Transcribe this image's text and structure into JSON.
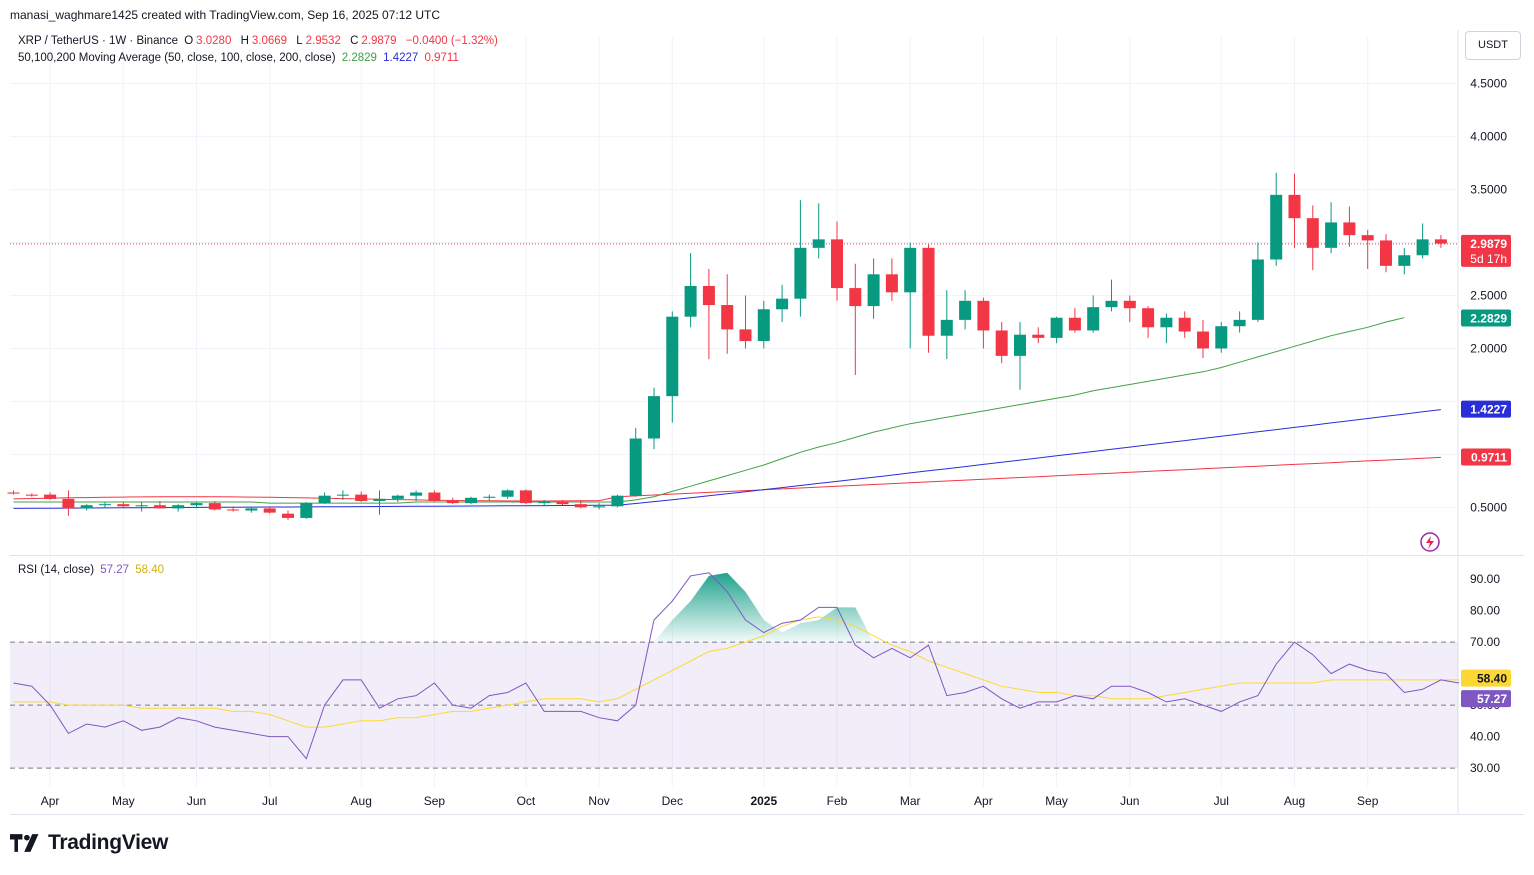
{
  "header": {
    "attribution": "manasi_waghmare1425 created with TradingView.com, Sep 16, 2025 07:12 UTC",
    "symbol": "XRP / TetherUS · 1W · Binance",
    "o_label": "O",
    "o_value": "3.0280",
    "h_label": "H",
    "h_value": "3.0669",
    "l_label": "L",
    "l_value": "2.9532",
    "c_label": "C",
    "c_value": "2.9879",
    "change": "−0.0400 (−1.32%)",
    "ma_title": "50,100,200 Moving Average (50, close, 100, close, 200, close)",
    "ma50_value": "2.2829",
    "ma100_value": "1.4227",
    "ma200_value": "0.9711",
    "rsi_title": "RSI (14, close)",
    "rsi_value": "57.27",
    "rsi_ma_value": "58.40",
    "currency_button": "USDT"
  },
  "price_scale_labels": {
    "last_price": "2.9879",
    "countdown": "5d 17h",
    "ma50": "2.2829",
    "ma100": "1.4227",
    "ma200": "0.9711",
    "rsi": "57.27",
    "rsi_ma": "58.40"
  },
  "brand": "TradingView",
  "colors": {
    "up": "#089981",
    "down": "#f23645",
    "ma50": "#43a047",
    "ma100": "#2a2ed6",
    "ma200": "#f23645",
    "rsi": "#7e57c2",
    "rsi_ma": "#fdd835"
  },
  "chart_data": [
    {
      "type": "candlestick",
      "title": "XRP / TetherUS · 1W · Binance",
      "y_ticks": [
        0.5,
        1.0,
        1.5,
        2.0,
        2.5,
        3.0,
        3.5,
        4.0,
        4.5
      ],
      "y_tick_labels": [
        "0.5000",
        "",
        "",
        "2.0000",
        "2.5000",
        "",
        "3.5000",
        "4.0000",
        "4.5000"
      ],
      "ylim": [
        0.05,
        4.95
      ],
      "x_labels": [
        {
          "label": "Apr",
          "bar": 2
        },
        {
          "label": "May",
          "bar": 6
        },
        {
          "label": "Jun",
          "bar": 10
        },
        {
          "label": "Jul",
          "bar": 14
        },
        {
          "label": "Aug",
          "bar": 19
        },
        {
          "label": "Sep",
          "bar": 23
        },
        {
          "label": "Oct",
          "bar": 28
        },
        {
          "label": "Nov",
          "bar": 32
        },
        {
          "label": "Dec",
          "bar": 36
        },
        {
          "label": "2025",
          "bar": 41
        },
        {
          "label": "Feb",
          "bar": 45
        },
        {
          "label": "Mar",
          "bar": 49
        },
        {
          "label": "Apr",
          "bar": 53
        },
        {
          "label": "May",
          "bar": 57
        },
        {
          "label": "Jun",
          "bar": 61
        },
        {
          "label": "Jul",
          "bar": 66
        },
        {
          "label": "Aug",
          "bar": 70
        },
        {
          "label": "Sep",
          "bar": 74
        }
      ],
      "last_price": 2.9879,
      "candles": [
        [
          0.64,
          0.66,
          0.62,
          0.63
        ],
        [
          0.62,
          0.63,
          0.6,
          0.61
        ],
        [
          0.62,
          0.64,
          0.57,
          0.58
        ],
        [
          0.58,
          0.66,
          0.42,
          0.49
        ],
        [
          0.49,
          0.53,
          0.47,
          0.52
        ],
        [
          0.52,
          0.55,
          0.49,
          0.53
        ],
        [
          0.53,
          0.55,
          0.49,
          0.51
        ],
        [
          0.51,
          0.55,
          0.46,
          0.52
        ],
        [
          0.52,
          0.56,
          0.49,
          0.49
        ],
        [
          0.49,
          0.53,
          0.46,
          0.52
        ],
        [
          0.52,
          0.55,
          0.49,
          0.54
        ],
        [
          0.54,
          0.56,
          0.47,
          0.48
        ],
        [
          0.48,
          0.51,
          0.46,
          0.47
        ],
        [
          0.47,
          0.5,
          0.45,
          0.49
        ],
        [
          0.49,
          0.5,
          0.44,
          0.45
        ],
        [
          0.44,
          0.47,
          0.38,
          0.4
        ],
        [
          0.4,
          0.55,
          0.39,
          0.54
        ],
        [
          0.54,
          0.64,
          0.53,
          0.61
        ],
        [
          0.61,
          0.66,
          0.57,
          0.62
        ],
        [
          0.62,
          0.65,
          0.55,
          0.56
        ],
        [
          0.56,
          0.66,
          0.43,
          0.58
        ],
        [
          0.58,
          0.62,
          0.55,
          0.61
        ],
        [
          0.61,
          0.66,
          0.56,
          0.64
        ],
        [
          0.64,
          0.66,
          0.55,
          0.56
        ],
        [
          0.56,
          0.59,
          0.53,
          0.54
        ],
        [
          0.54,
          0.6,
          0.53,
          0.59
        ],
        [
          0.59,
          0.62,
          0.56,
          0.6
        ],
        [
          0.6,
          0.67,
          0.58,
          0.66
        ],
        [
          0.66,
          0.67,
          0.53,
          0.54
        ],
        [
          0.54,
          0.57,
          0.51,
          0.55
        ],
        [
          0.55,
          0.57,
          0.52,
          0.53
        ],
        [
          0.53,
          0.57,
          0.49,
          0.5
        ],
        [
          0.5,
          0.54,
          0.48,
          0.51
        ],
        [
          0.51,
          0.62,
          0.5,
          0.61
        ],
        [
          0.61,
          1.25,
          0.6,
          1.15
        ],
        [
          1.15,
          1.63,
          1.05,
          1.55
        ],
        [
          1.55,
          2.35,
          1.3,
          2.3
        ],
        [
          2.3,
          2.9,
          2.2,
          2.59
        ],
        [
          2.59,
          2.75,
          1.9,
          2.41
        ],
        [
          2.41,
          2.7,
          1.95,
          2.18
        ],
        [
          2.18,
          2.5,
          2.0,
          2.07
        ],
        [
          2.07,
          2.45,
          2.0,
          2.37
        ],
        [
          2.37,
          2.6,
          2.25,
          2.47
        ],
        [
          2.47,
          3.4,
          2.3,
          2.95
        ],
        [
          2.95,
          3.37,
          2.85,
          3.03
        ],
        [
          3.03,
          3.2,
          2.45,
          2.57
        ],
        [
          2.57,
          2.8,
          1.75,
          2.4
        ],
        [
          2.4,
          2.85,
          2.28,
          2.7
        ],
        [
          2.7,
          2.85,
          2.45,
          2.53
        ],
        [
          2.53,
          3.0,
          2.0,
          2.95
        ],
        [
          2.95,
          2.98,
          1.96,
          2.12
        ],
        [
          2.12,
          2.55,
          1.9,
          2.27
        ],
        [
          2.27,
          2.55,
          2.18,
          2.45
        ],
        [
          2.45,
          2.48,
          2.0,
          2.17
        ],
        [
          2.17,
          2.25,
          1.86,
          1.93
        ],
        [
          1.93,
          2.25,
          1.61,
          2.13
        ],
        [
          2.13,
          2.2,
          2.05,
          2.1
        ],
        [
          2.1,
          2.3,
          2.05,
          2.29
        ],
        [
          2.29,
          2.38,
          2.15,
          2.17
        ],
        [
          2.17,
          2.5,
          2.15,
          2.39
        ],
        [
          2.39,
          2.65,
          2.35,
          2.45
        ],
        [
          2.45,
          2.5,
          2.25,
          2.38
        ],
        [
          2.38,
          2.4,
          2.1,
          2.2
        ],
        [
          2.2,
          2.33,
          2.05,
          2.29
        ],
        [
          2.29,
          2.35,
          2.1,
          2.16
        ],
        [
          2.16,
          2.27,
          1.91,
          2.0
        ],
        [
          2.0,
          2.25,
          1.96,
          2.21
        ],
        [
          2.21,
          2.35,
          2.15,
          2.27
        ],
        [
          2.27,
          3.0,
          2.25,
          2.84
        ],
        [
          2.84,
          3.66,
          2.78,
          3.45
        ],
        [
          3.45,
          3.65,
          2.95,
          3.23
        ],
        [
          3.23,
          3.35,
          2.74,
          2.95
        ],
        [
          2.95,
          3.38,
          2.9,
          3.19
        ],
        [
          3.19,
          3.34,
          2.96,
          3.07
        ],
        [
          3.07,
          3.12,
          2.75,
          3.02
        ],
        [
          3.02,
          3.08,
          2.72,
          2.78
        ],
        [
          2.78,
          2.95,
          2.7,
          2.88
        ],
        [
          2.88,
          3.18,
          2.85,
          3.03
        ],
        [
          3.03,
          3.07,
          2.95,
          2.99
        ]
      ],
      "ma50": [
        0.55,
        0.55,
        0.55,
        0.55,
        0.55,
        0.55,
        0.55,
        0.55,
        0.55,
        0.55,
        0.55,
        0.55,
        0.55,
        0.55,
        0.54,
        0.54,
        0.54,
        0.54,
        0.54,
        0.54,
        0.54,
        0.54,
        0.55,
        0.55,
        0.55,
        0.55,
        0.55,
        0.55,
        0.55,
        0.55,
        0.55,
        0.55,
        0.55,
        0.55,
        0.57,
        0.6,
        0.65,
        0.7,
        0.75,
        0.8,
        0.85,
        0.9,
        0.96,
        1.02,
        1.07,
        1.11,
        1.16,
        1.21,
        1.25,
        1.29,
        1.32,
        1.35,
        1.38,
        1.41,
        1.44,
        1.47,
        1.5,
        1.53,
        1.56,
        1.6,
        1.63,
        1.66,
        1.69,
        1.72,
        1.75,
        1.78,
        1.82,
        1.87,
        1.92,
        1.97,
        2.02,
        2.07,
        2.12,
        2.16,
        2.2,
        2.25,
        2.29
      ]
    },
    {
      "type": "line",
      "title": "RSI (14, close)",
      "y_ticks": [
        30,
        40,
        50,
        60,
        70,
        80,
        90
      ],
      "y_tick_labels": [
        "30.00",
        "40.00",
        "50.00",
        "",
        "70.00",
        "80.00",
        "90.00"
      ],
      "ylim": [
        24,
        97
      ],
      "bands": {
        "upper": 70,
        "middle": 50,
        "lower": 30
      },
      "rsi": [
        57,
        56,
        50,
        41,
        44,
        43,
        45,
        42,
        43,
        46,
        45,
        43,
        42,
        41,
        40,
        40,
        33,
        50,
        58,
        58,
        49,
        52,
        53,
        57,
        50,
        49,
        53,
        54,
        57,
        48,
        48,
        48,
        46,
        45,
        50,
        77,
        83,
        91,
        92,
        86,
        77,
        73,
        76,
        77,
        81,
        81,
        69,
        65,
        68,
        65,
        69,
        53,
        54,
        56,
        52,
        49,
        51,
        51,
        53,
        52,
        56,
        56,
        54,
        51,
        52,
        50,
        48,
        51,
        53,
        63,
        70,
        66,
        60,
        63,
        61,
        60,
        54,
        55,
        58,
        57
      ],
      "rsi_ma": [
        51,
        51,
        51,
        50,
        50,
        50,
        50,
        49,
        49,
        49,
        49,
        49,
        48,
        48,
        47,
        45,
        43,
        43,
        44,
        45,
        45,
        46,
        46,
        47,
        48,
        48,
        49,
        50,
        51,
        52,
        52,
        52,
        51,
        52,
        55,
        58,
        61,
        64,
        67,
        68,
        70,
        72,
        75,
        77,
        78,
        77,
        75,
        72,
        69,
        67,
        64,
        62,
        60,
        58,
        56,
        55,
        54,
        54,
        53,
        53,
        52,
        52,
        52,
        53,
        54,
        55,
        56,
        57,
        57,
        57,
        57,
        57,
        58,
        58,
        58,
        58,
        58,
        58,
        58,
        58
      ]
    }
  ]
}
